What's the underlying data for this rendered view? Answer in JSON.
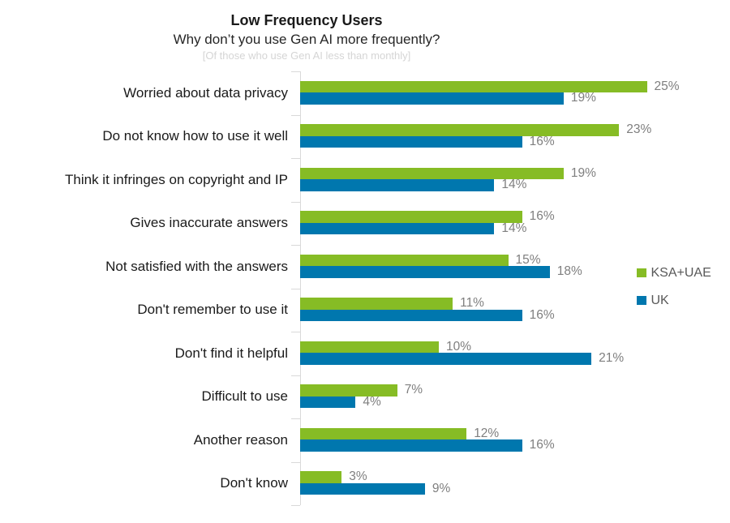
{
  "header": {
    "title": "Low Frequency Users",
    "subtitle": "Why don’t you use Gen AI more frequently?",
    "note": "[Of those who use Gen AI less than monthly]"
  },
  "legend": {
    "items": [
      {
        "label": "KSA+UAE",
        "color": "#86BC25"
      },
      {
        "label": "UK",
        "color": "#0077AE"
      }
    ]
  },
  "chart_data": {
    "type": "bar",
    "orientation": "horizontal",
    "title": "Low Frequency Users",
    "subtitle": "Why don’t you use Gen AI more frequently?",
    "annotation": "[Of those who use Gen AI less than monthly]",
    "categories": [
      "Worried about data privacy",
      "Do not know how to use it well",
      "Think it infringes on copyright and IP",
      "Gives inaccurate answers",
      "Not satisfied with the answers",
      "Don't remember to use it",
      "Don't find it helpful",
      "Difficult to use",
      "Another reason",
      "Don't know"
    ],
    "series": [
      {
        "name": "KSA+UAE",
        "color": "#86BC25",
        "values": [
          25,
          23,
          19,
          16,
          15,
          11,
          10,
          7,
          12,
          3
        ],
        "labels": [
          "25%",
          "23%",
          "19%",
          "16%",
          "15%",
          "11%",
          "10%",
          "7%",
          "12%",
          "3%"
        ]
      },
      {
        "name": "UK",
        "color": "#0077AE",
        "values": [
          19,
          16,
          14,
          14,
          18,
          16,
          21,
          4,
          16,
          9
        ],
        "labels": [
          "19%",
          "16%",
          "14%",
          "14%",
          "18%",
          "16%",
          "21%",
          "4%",
          "16%",
          "9%"
        ]
      }
    ],
    "value_suffix": "%",
    "xlim": [
      0,
      28
    ],
    "grid": false,
    "value_labels": "outside-end",
    "legend_position": "right"
  },
  "colors": {
    "ksa_uae_bar": "#86BC25",
    "uk_bar": "#0077AE",
    "value_label_text": "#7F7F7F",
    "legend_text": "#595959",
    "axis_line": "#D9D9D9",
    "note_text": "#D5D5D5",
    "category_text": "#1A1A1A"
  }
}
